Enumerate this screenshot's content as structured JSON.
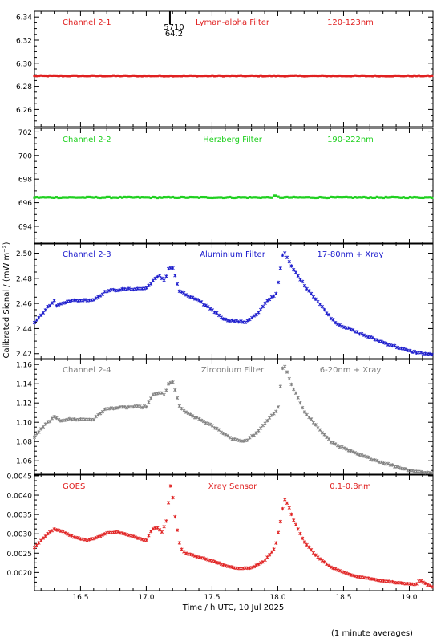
{
  "figure": {
    "ylabel": "Calibrated Signal / (mW m⁻²)",
    "xlabel": "Time / h UTC, 10 Jul 2025",
    "footnote": "(1 minute averages)",
    "xlim": [
      16.15,
      19.18
    ],
    "xticks": [
      16.5,
      17.0,
      17.5,
      18.0,
      18.5,
      19.0
    ],
    "xtick_labels": [
      "16.5",
      "17.0",
      "17.5",
      "18.0",
      "18.5",
      "19.0"
    ]
  },
  "chart_data": [
    {
      "type": "scatter",
      "color": "#e02020",
      "labels": {
        "channel": "Channel 2-1",
        "filter": "Lyman-alpha Filter",
        "range": "120-123nm"
      },
      "annotation": {
        "x": 17.18,
        "lines": [
          "5710",
          "64.2"
        ]
      },
      "ylim": [
        6.245,
        6.345
      ],
      "yticks": [
        6.26,
        6.28,
        6.3,
        6.32,
        6.34
      ],
      "ytick_labels": [
        "6.26",
        "6.28",
        "6.30",
        "6.32",
        "6.34"
      ],
      "shape": [
        [
          16.15,
          6.289
        ],
        [
          19.18,
          6.289
        ]
      ],
      "noise": 0.0003,
      "step": 0.0167,
      "marker": "square"
    },
    {
      "type": "scatter",
      "color": "#20d020",
      "labels": {
        "channel": "Channel 2-2",
        "filter": "Herzberg Filter",
        "range": "190-222nm"
      },
      "ylim": [
        692.5,
        702.3
      ],
      "yticks": [
        694,
        696,
        698,
        700,
        702
      ],
      "ytick_labels": [
        "694",
        "696",
        "698",
        "700",
        "702"
      ],
      "shape": [
        [
          16.15,
          696.45
        ],
        [
          17.95,
          696.45
        ],
        [
          17.98,
          696.6
        ],
        [
          18.01,
          696.45
        ],
        [
          19.18,
          696.45
        ]
      ],
      "noise": 0.04,
      "step": 0.0167,
      "marker": "square"
    },
    {
      "type": "scatter",
      "color": "#1a1acc",
      "labels": {
        "channel": "Channel 2-3",
        "filter": "Aluminium Filter",
        "range": "17-80nm + Xray"
      },
      "ylim": [
        2.416,
        2.508
      ],
      "yticks": [
        2.42,
        2.44,
        2.46,
        2.48,
        2.5
      ],
      "ytick_labels": [
        "2.42",
        "2.44",
        "2.46",
        "2.48",
        "2.50"
      ],
      "shape": [
        [
          16.15,
          2.445
        ],
        [
          16.25,
          2.457
        ],
        [
          16.3,
          2.462
        ],
        [
          16.32,
          2.458
        ],
        [
          16.4,
          2.462
        ],
        [
          16.6,
          2.463
        ],
        [
          16.67,
          2.468
        ],
        [
          16.7,
          2.47
        ],
        [
          16.8,
          2.471
        ],
        [
          17.0,
          2.472
        ],
        [
          17.05,
          2.478
        ],
        [
          17.1,
          2.482
        ],
        [
          17.14,
          2.478
        ],
        [
          17.17,
          2.488
        ],
        [
          17.2,
          2.489
        ],
        [
          17.25,
          2.47
        ],
        [
          17.3,
          2.467
        ],
        [
          17.4,
          2.462
        ],
        [
          17.5,
          2.455
        ],
        [
          17.6,
          2.447
        ],
        [
          17.75,
          2.445
        ],
        [
          17.85,
          2.452
        ],
        [
          17.92,
          2.462
        ],
        [
          17.99,
          2.468
        ],
        [
          18.04,
          2.501
        ],
        [
          18.06,
          2.499
        ],
        [
          18.1,
          2.49
        ],
        [
          18.2,
          2.475
        ],
        [
          18.3,
          2.462
        ],
        [
          18.4,
          2.449
        ],
        [
          18.45,
          2.444
        ],
        [
          18.6,
          2.437
        ],
        [
          18.8,
          2.429
        ],
        [
          19.0,
          2.422
        ],
        [
          19.18,
          2.419
        ]
      ],
      "noise": 0.0006,
      "step": 0.0167,
      "marker": "star"
    },
    {
      "type": "scatter",
      "color": "#808080",
      "labels": {
        "channel": "Channel 2-4",
        "filter": "Zirconium Filter",
        "range": "6-20nm + Xray"
      },
      "ylim": [
        1.046,
        1.166
      ],
      "yticks": [
        1.06,
        1.08,
        1.1,
        1.12,
        1.14,
        1.16
      ],
      "ytick_labels": [
        "1.06",
        "1.08",
        "1.10",
        "1.12",
        "1.14",
        "1.16"
      ],
      "shape": [
        [
          16.15,
          1.085
        ],
        [
          16.25,
          1.1
        ],
        [
          16.3,
          1.105
        ],
        [
          16.35,
          1.102
        ],
        [
          16.4,
          1.103
        ],
        [
          16.6,
          1.103
        ],
        [
          16.68,
          1.113
        ],
        [
          16.75,
          1.115
        ],
        [
          16.8,
          1.115
        ],
        [
          16.9,
          1.116
        ],
        [
          17.0,
          1.116
        ],
        [
          17.05,
          1.128
        ],
        [
          17.1,
          1.131
        ],
        [
          17.14,
          1.128
        ],
        [
          17.17,
          1.14
        ],
        [
          17.2,
          1.143
        ],
        [
          17.25,
          1.117
        ],
        [
          17.3,
          1.11
        ],
        [
          17.45,
          1.1
        ],
        [
          17.55,
          1.092
        ],
        [
          17.65,
          1.083
        ],
        [
          17.75,
          1.08
        ],
        [
          17.85,
          1.09
        ],
        [
          17.95,
          1.107
        ],
        [
          18.0,
          1.112
        ],
        [
          18.04,
          1.16
        ],
        [
          18.06,
          1.156
        ],
        [
          18.1,
          1.14
        ],
        [
          18.2,
          1.112
        ],
        [
          18.3,
          1.095
        ],
        [
          18.4,
          1.08
        ],
        [
          18.5,
          1.073
        ],
        [
          18.6,
          1.067
        ],
        [
          18.8,
          1.058
        ],
        [
          18.95,
          1.052
        ],
        [
          19.05,
          1.049
        ],
        [
          19.18,
          1.047
        ]
      ],
      "noise": 0.0008,
      "step": 0.0167,
      "marker": "star"
    },
    {
      "type": "scatter",
      "color": "#e02020",
      "labels": {
        "channel": "GOES",
        "filter": "Xray Sensor",
        "range": "0.1-0.8nm"
      },
      "ylim": [
        0.00153,
        0.00452
      ],
      "yticks": [
        0.002,
        0.0025,
        0.003,
        0.0035,
        0.004,
        0.0045
      ],
      "ytick_labels": [
        "0.0020",
        "0.0025",
        "0.0030",
        "0.0035",
        "0.0040",
        "0.0045"
      ],
      "shape": [
        [
          16.15,
          0.00265
        ],
        [
          16.25,
          0.003
        ],
        [
          16.3,
          0.00312
        ],
        [
          16.35,
          0.00308
        ],
        [
          16.45,
          0.00292
        ],
        [
          16.55,
          0.00283
        ],
        [
          16.62,
          0.0029
        ],
        [
          16.7,
          0.00302
        ],
        [
          16.78,
          0.00305
        ],
        [
          16.9,
          0.00293
        ],
        [
          17.0,
          0.00283
        ],
        [
          17.04,
          0.0031
        ],
        [
          17.08,
          0.00318
        ],
        [
          17.12,
          0.00305
        ],
        [
          17.16,
          0.0034
        ],
        [
          17.18,
          0.00432
        ],
        [
          17.2,
          0.004
        ],
        [
          17.22,
          0.0034
        ],
        [
          17.26,
          0.00262
        ],
        [
          17.3,
          0.0025
        ],
        [
          17.4,
          0.0024
        ],
        [
          17.5,
          0.0023
        ],
        [
          17.6,
          0.00218
        ],
        [
          17.7,
          0.0021
        ],
        [
          17.8,
          0.00212
        ],
        [
          17.9,
          0.0023
        ],
        [
          17.98,
          0.00265
        ],
        [
          18.02,
          0.0033
        ],
        [
          18.05,
          0.0039
        ],
        [
          18.08,
          0.00375
        ],
        [
          18.12,
          0.00335
        ],
        [
          18.2,
          0.0028
        ],
        [
          18.3,
          0.0024
        ],
        [
          18.4,
          0.00215
        ],
        [
          18.5,
          0.002
        ],
        [
          18.6,
          0.0019
        ],
        [
          18.8,
          0.00178
        ],
        [
          19.0,
          0.0017
        ],
        [
          19.05,
          0.00168
        ],
        [
          19.08,
          0.0018
        ],
        [
          19.1,
          0.00175
        ],
        [
          19.18,
          0.00162
        ]
      ],
      "noise": 8e-06,
      "step": 0.0167,
      "marker": "star"
    }
  ]
}
